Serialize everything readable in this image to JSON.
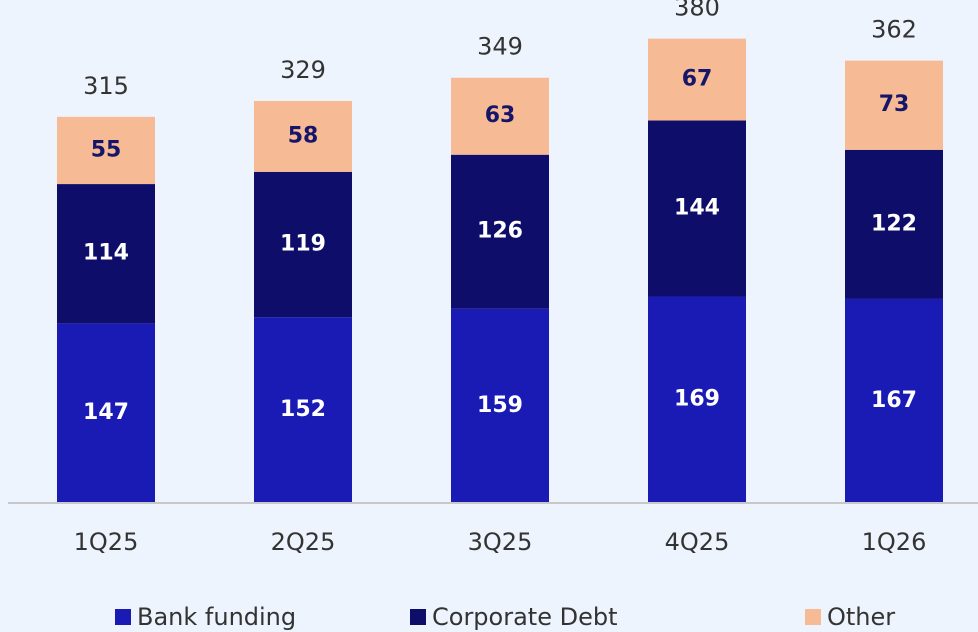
{
  "chart_data": {
    "type": "stacked_bar",
    "categories": [
      "1Q25",
      "2Q25",
      "3Q25",
      "4Q25",
      "1Q26"
    ],
    "series": [
      {
        "name": "Bank funding",
        "color": "#1a1ab4",
        "label_color": "#ffffff",
        "values": [
          147,
          152,
          159,
          169,
          167
        ]
      },
      {
        "name": "Corporate Debt",
        "color": "#0e0e6a",
        "label_color": "#ffffff",
        "values": [
          114,
          119,
          126,
          144,
          122
        ]
      },
      {
        "name": "Other",
        "color": "#f6ba94",
        "label_color": "#15156a",
        "values": [
          55,
          58,
          63,
          67,
          73
        ]
      }
    ],
    "totals": [
      315,
      329,
      349,
      380,
      362
    ]
  }
}
